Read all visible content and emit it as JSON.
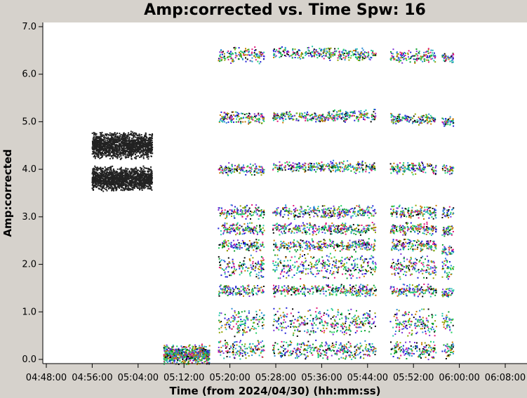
{
  "chart_data": {
    "type": "scatter",
    "title": "Amp:corrected vs. Time Spw: 16",
    "xlabel": "Time (from 2024/04/30) (hh:mm:ss)",
    "ylabel": "Amp:corrected",
    "xlim": [
      "04:48:00",
      "06:08:00"
    ],
    "ylim": [
      0.0,
      7.0
    ],
    "grid": false,
    "legend": "none",
    "x_ticks": [
      "04:48:00",
      "04:56:00",
      "05:04:00",
      "05:12:00",
      "05:20:00",
      "05:28:00",
      "05:36:00",
      "05:44:00",
      "05:52:00",
      "06:00:00",
      "06:08:00"
    ],
    "y_ticks": [
      "0.0",
      "1.0",
      "2.0",
      "3.0",
      "4.0",
      "5.0",
      "6.0",
      "7.0"
    ],
    "colors": [
      "#000000",
      "#1f1fd6",
      "#7a2fd6",
      "#2a8cd6",
      "#1fcf5f",
      "#22c4a8",
      "#8fa200",
      "#c87a00",
      "#e0157a",
      "#0e9e2e"
    ],
    "series": [
      {
        "name": "",
        "scan_start": "04:56:00",
        "scan_end": "05:06:30",
        "color": "#222222",
        "bands": [
          {
            "center": 4.5,
            "spread": 0.3
          },
          {
            "center": 3.8,
            "spread": 0.27
          }
        ],
        "density": 1600
      },
      {
        "name": "",
        "scan_start": "05:08:30",
        "scan_end": "05:16:30",
        "multicolor": true,
        "bands": [
          {
            "center": 0.1,
            "spread": 0.22
          }
        ],
        "density": 700
      },
      {
        "name": "",
        "scan_start": "05:18:00",
        "scan_end": "05:26:00",
        "multicolor": true,
        "bands": [
          {
            "center": 6.4,
            "spread": 0.18
          },
          {
            "center": 5.08,
            "spread": 0.14
          },
          {
            "center": 4.0,
            "spread": 0.14
          },
          {
            "center": 3.1,
            "spread": 0.16
          },
          {
            "center": 2.75,
            "spread": 0.14
          },
          {
            "center": 2.4,
            "spread": 0.14
          },
          {
            "center": 1.95,
            "spread": 0.28
          },
          {
            "center": 1.45,
            "spread": 0.14
          },
          {
            "center": 0.78,
            "spread": 0.32
          },
          {
            "center": 0.2,
            "spread": 0.22
          }
        ],
        "density": 140
      },
      {
        "name": "",
        "scan_start": "05:27:30",
        "scan_end": "05:37:00",
        "multicolor": true,
        "bands": [
          {
            "center": 6.45,
            "spread": 0.14
          },
          {
            "center": 5.1,
            "spread": 0.12
          },
          {
            "center": 4.05,
            "spread": 0.12
          },
          {
            "center": 3.1,
            "spread": 0.16
          },
          {
            "center": 2.75,
            "spread": 0.14
          },
          {
            "center": 2.4,
            "spread": 0.14
          },
          {
            "center": 1.95,
            "spread": 0.28
          },
          {
            "center": 1.45,
            "spread": 0.14
          },
          {
            "center": 0.78,
            "spread": 0.32
          },
          {
            "center": 0.2,
            "spread": 0.22
          }
        ],
        "density": 160
      },
      {
        "name": "",
        "scan_start": "05:37:00",
        "scan_end": "05:45:30",
        "multicolor": true,
        "bands": [
          {
            "center": 6.42,
            "spread": 0.16
          },
          {
            "center": 5.12,
            "spread": 0.14
          },
          {
            "center": 4.05,
            "spread": 0.14
          },
          {
            "center": 3.1,
            "spread": 0.16
          },
          {
            "center": 2.75,
            "spread": 0.14
          },
          {
            "center": 2.4,
            "spread": 0.14
          },
          {
            "center": 1.95,
            "spread": 0.28
          },
          {
            "center": 1.45,
            "spread": 0.14
          },
          {
            "center": 0.78,
            "spread": 0.32
          },
          {
            "center": 0.2,
            "spread": 0.22
          }
        ],
        "density": 160
      },
      {
        "name": "",
        "scan_start": "05:48:00",
        "scan_end": "05:56:00",
        "multicolor": true,
        "bands": [
          {
            "center": 6.38,
            "spread": 0.16
          },
          {
            "center": 5.05,
            "spread": 0.14
          },
          {
            "center": 4.02,
            "spread": 0.14
          },
          {
            "center": 3.1,
            "spread": 0.16
          },
          {
            "center": 2.75,
            "spread": 0.14
          },
          {
            "center": 2.4,
            "spread": 0.14
          },
          {
            "center": 1.95,
            "spread": 0.28
          },
          {
            "center": 1.45,
            "spread": 0.14
          },
          {
            "center": 0.78,
            "spread": 0.32
          },
          {
            "center": 0.2,
            "spread": 0.22
          }
        ],
        "density": 150
      },
      {
        "name": "",
        "scan_start": "05:57:00",
        "scan_end": "05:59:00",
        "multicolor": true,
        "bands": [
          {
            "center": 6.35,
            "spread": 0.12
          },
          {
            "center": 5.0,
            "spread": 0.12
          },
          {
            "center": 4.0,
            "spread": 0.12
          },
          {
            "center": 3.1,
            "spread": 0.14
          },
          {
            "center": 2.7,
            "spread": 0.14
          },
          {
            "center": 2.3,
            "spread": 0.14
          },
          {
            "center": 1.9,
            "spread": 0.25
          },
          {
            "center": 1.4,
            "spread": 0.12
          },
          {
            "center": 0.78,
            "spread": 0.3
          },
          {
            "center": 0.2,
            "spread": 0.2
          }
        ],
        "density": 40
      }
    ]
  }
}
